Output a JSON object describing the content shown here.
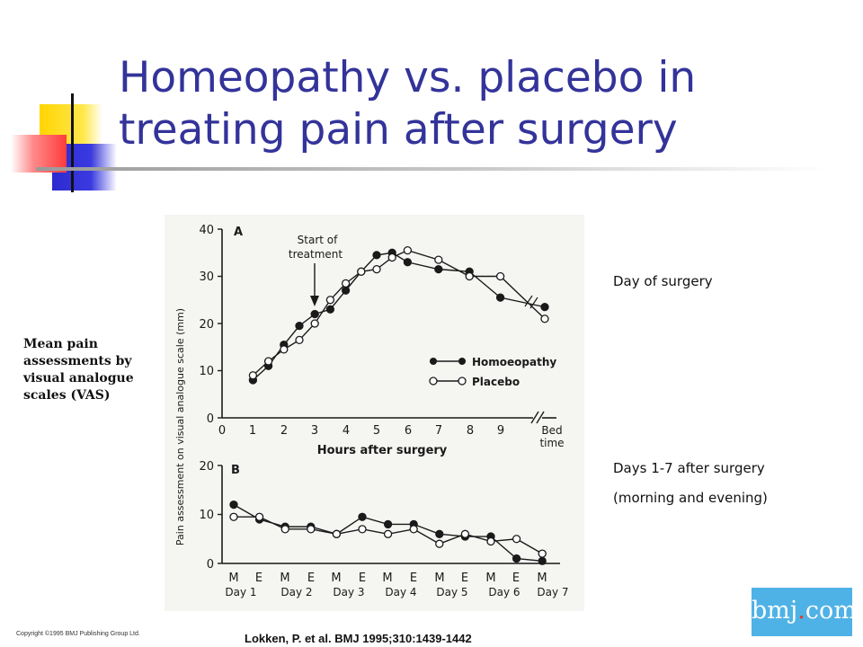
{
  "slide": {
    "title": "Homeopathy vs. placebo in treating pain after surgery",
    "vas_label": "Mean pain assessments by visual analogue scales (VAS)",
    "day_of_surgery_note": "Day of surgery",
    "days_after_note_1": "Days 1-7 after surgery",
    "days_after_note_2": "(morning and evening)",
    "citation": "Lokken, P. et al. BMJ 1995;310:1439-1442",
    "copyright": "Copyright ©1995 BMJ Publishing Group Ltd.",
    "logo": {
      "main": "bmj",
      "dot": ".",
      "suffix": "com"
    }
  },
  "colors": {
    "title": "#33339a",
    "deco_yellow": "#ffd400",
    "deco_blue": "#2b2bd0",
    "deco_red": "#ff3b3b",
    "logo_bg": "#4fb2e6",
    "ink": "#1a1a1a"
  },
  "chart_data": [
    {
      "type": "line",
      "panel_label": "A",
      "ylabel": "Pain assessment on visual analogue scale (mm)",
      "xlabel": "Hours after surgery",
      "ylim": [
        0,
        40
      ],
      "yticks": [
        0,
        10,
        20,
        30,
        40
      ],
      "x_tick_labels": [
        "0",
        "1",
        "2",
        "3",
        "4",
        "5",
        "6",
        "7",
        "8",
        "9",
        "Bed",
        "time"
      ],
      "annotation": {
        "line1": "Start of",
        "line2": "treatment",
        "x": 3
      },
      "legend": [
        "Homoeopathy",
        "Placebo"
      ],
      "series": [
        {
          "name": "Homoeopathy",
          "marker": "filled",
          "x": [
            1,
            1.5,
            2,
            2.5,
            3,
            3.5,
            4,
            4.5,
            5,
            5.5,
            6,
            7,
            8,
            9,
            "Bed time"
          ],
          "values": [
            8,
            11,
            15.5,
            19.5,
            22,
            23,
            27,
            31,
            34.5,
            35,
            33,
            31.5,
            31,
            25.5,
            23.5
          ]
        },
        {
          "name": "Placebo",
          "marker": "open",
          "x": [
            1,
            1.5,
            2,
            2.5,
            3,
            3.5,
            4,
            4.5,
            5,
            5.5,
            6,
            7,
            8,
            9,
            "Bed time"
          ],
          "values": [
            9,
            12,
            14.5,
            16.5,
            20,
            25,
            28.5,
            31,
            31.5,
            34,
            35.5,
            33.5,
            30,
            30,
            21
          ]
        }
      ]
    },
    {
      "type": "line",
      "panel_label": "B",
      "ylim": [
        0,
        20
      ],
      "yticks": [
        0,
        10,
        20
      ],
      "categories": [
        "M",
        "E",
        "M",
        "E",
        "M",
        "E",
        "M",
        "E",
        "M",
        "E",
        "M",
        "E",
        "M"
      ],
      "day_labels": [
        "Day 1",
        "Day 2",
        "Day 3",
        "Day 4",
        "Day 5",
        "Day 6",
        "Day 7"
      ],
      "series": [
        {
          "name": "Homoeopathy",
          "marker": "filled",
          "values": [
            12,
            9,
            7.5,
            7.5,
            6,
            9.5,
            8,
            8,
            6,
            5.5,
            5.5,
            1,
            0.5
          ]
        },
        {
          "name": "Placebo",
          "marker": "open",
          "values": [
            9.5,
            9.5,
            7,
            7,
            6,
            7,
            6,
            7,
            4,
            6,
            4.5,
            5,
            2
          ]
        }
      ]
    }
  ]
}
